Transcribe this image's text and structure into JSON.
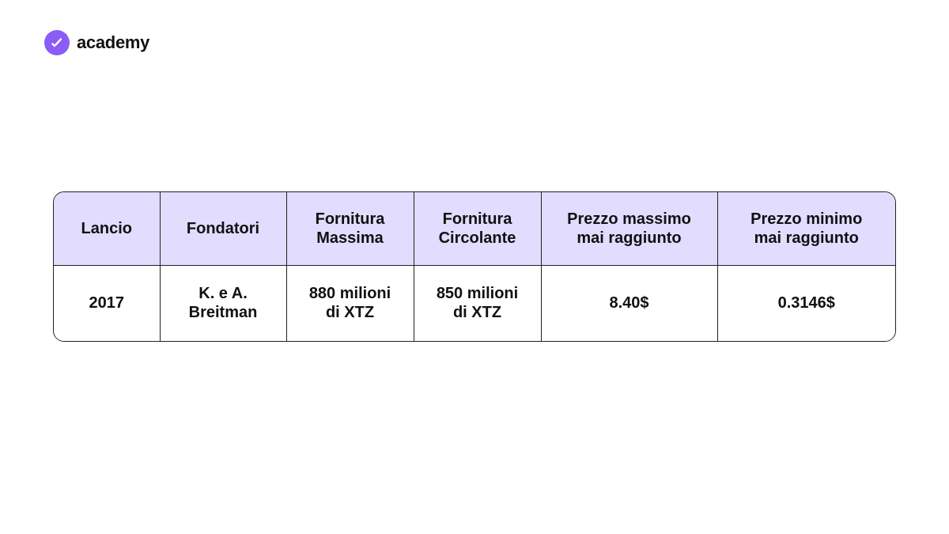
{
  "brand": {
    "name": "academy",
    "color": "#8b5cf6",
    "icon": "checkmark-icon"
  },
  "table": {
    "header_bg": "#e2dcff",
    "headers": [
      "Lancio",
      "Fondatori",
      "Fornitura\nMassima",
      "Fornitura\nCircolante",
      "Prezzo massimo\nmai raggiunto",
      "Prezzo minimo\nmai raggiunto"
    ],
    "rows": [
      [
        "2017",
        "K. e A.\nBreitman",
        "880 milioni\ndi XTZ",
        "850 milioni\ndi XTZ",
        "8.40$",
        "0.3146$"
      ]
    ]
  }
}
